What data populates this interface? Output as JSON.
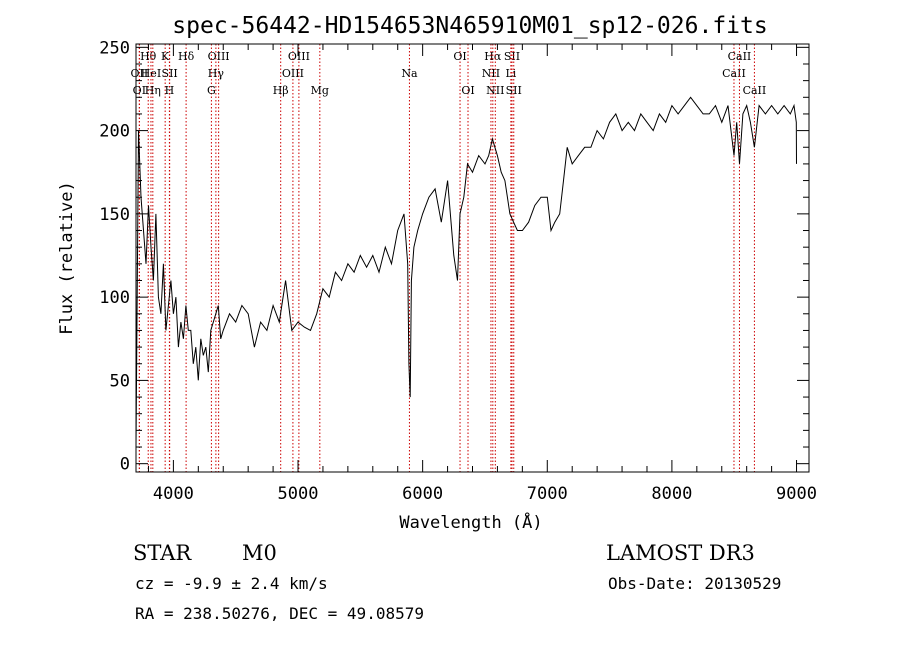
{
  "chart_data": {
    "type": "line",
    "title": "spec-56442-HD154653N465910M01_sp12-026.fits",
    "xlabel": "Wavelength (Å)",
    "ylabel": "Flux (relative)",
    "xlim": [
      3700,
      9100
    ],
    "ylim": [
      -5,
      252
    ],
    "xticks": [
      4000,
      5000,
      6000,
      7000,
      8000,
      9000
    ],
    "yticks": [
      0,
      50,
      100,
      150,
      200,
      250
    ],
    "grid": false,
    "series": [
      {
        "x": [
          3700,
          3720,
          3740,
          3760,
          3780,
          3800,
          3820,
          3840,
          3860,
          3880,
          3900,
          3920,
          3940,
          3960,
          3980,
          4000,
          4020,
          4040,
          4060,
          4080,
          4100,
          4120,
          4140,
          4160,
          4180,
          4200,
          4220,
          4240,
          4260,
          4280,
          4300,
          4320,
          4340,
          4360,
          4380,
          4400,
          4450,
          4500,
          4550,
          4600,
          4650,
          4700,
          4750,
          4800,
          4850,
          4900,
          4950,
          5000,
          5050,
          5100,
          5150,
          5200,
          5250,
          5300,
          5350,
          5400,
          5450,
          5500,
          5550,
          5600,
          5650,
          5700,
          5750,
          5800,
          5850,
          5880,
          5890,
          5900,
          5910,
          5930,
          5960,
          6000,
          6050,
          6100,
          6150,
          6200,
          6250,
          6280,
          6300,
          6330,
          6360,
          6400,
          6450,
          6500,
          6530,
          6560,
          6580,
          6600,
          6630,
          6660,
          6700,
          6730,
          6760,
          6800,
          6850,
          6900,
          6950,
          7000,
          7030,
          7060,
          7100,
          7130,
          7160,
          7200,
          7250,
          7300,
          7350,
          7400,
          7450,
          7500,
          7550,
          7600,
          7650,
          7700,
          7750,
          7800,
          7850,
          7900,
          7950,
          8000,
          8050,
          8100,
          8150,
          8200,
          8250,
          8300,
          8350,
          8400,
          8450,
          8498,
          8520,
          8542,
          8570,
          8600,
          8630,
          8662,
          8700,
          8750,
          8800,
          8850,
          8900,
          8950,
          8980,
          8998,
          9000
        ],
        "values": [
          10,
          200,
          160,
          140,
          120,
          155,
          130,
          110,
          150,
          100,
          90,
          120,
          80,
          95,
          110,
          90,
          100,
          70,
          85,
          75,
          95,
          80,
          80,
          60,
          70,
          50,
          75,
          65,
          70,
          55,
          80,
          85,
          90,
          95,
          75,
          80,
          90,
          85,
          95,
          90,
          70,
          85,
          80,
          95,
          85,
          110,
          80,
          85,
          82,
          80,
          90,
          105,
          100,
          115,
          110,
          120,
          115,
          125,
          118,
          125,
          115,
          130,
          120,
          140,
          150,
          120,
          60,
          40,
          110,
          130,
          140,
          150,
          160,
          165,
          145,
          170,
          125,
          110,
          150,
          160,
          180,
          175,
          185,
          180,
          185,
          195,
          190,
          185,
          175,
          170,
          150,
          145,
          140,
          140,
          145,
          155,
          160,
          160,
          140,
          145,
          150,
          170,
          190,
          180,
          185,
          190,
          190,
          200,
          195,
          205,
          210,
          200,
          205,
          200,
          210,
          205,
          200,
          210,
          205,
          215,
          210,
          215,
          220,
          215,
          210,
          210,
          215,
          205,
          215,
          185,
          205,
          180,
          210,
          215,
          205,
          190,
          215,
          210,
          215,
          210,
          215,
          210,
          215,
          205,
          180
        ]
      }
    ],
    "line_ids": [
      {
        "label": "OII",
        "x": 3727,
        "row": 2
      },
      {
        "label": "OI",
        "x": 3727,
        "row": 3
      },
      {
        "label": "Hθ",
        "x": 3798,
        "row": 1
      },
      {
        "label": "HeI",
        "x": 3820,
        "row": 2
      },
      {
        "label": "Hη",
        "x": 3835,
        "row": 3
      },
      {
        "label": "K",
        "x": 3934,
        "row": 1
      },
      {
        "label": "SII",
        "x": 3970,
        "row": 2
      },
      {
        "label": "H",
        "x": 3968,
        "row": 3
      },
      {
        "label": "Hδ",
        "x": 4102,
        "row": 1
      },
      {
        "label": "OIII",
        "x": 4363,
        "row": 1
      },
      {
        "label": "Hγ",
        "x": 4341,
        "row": 2
      },
      {
        "label": "G",
        "x": 4305,
        "row": 3
      },
      {
        "label": "Hβ",
        "x": 4861,
        "row": 3
      },
      {
        "label": "OIII",
        "x": 4959,
        "row": 2
      },
      {
        "label": "OIII",
        "x": 5007,
        "row": 1
      },
      {
        "label": "Mg",
        "x": 5175,
        "row": 3
      },
      {
        "label": "Na",
        "x": 5894,
        "row": 2
      },
      {
        "label": "OI",
        "x": 6300,
        "row": 1
      },
      {
        "label": "OI",
        "x": 6364,
        "row": 3
      },
      {
        "label": "Hα",
        "x": 6563,
        "row": 1
      },
      {
        "label": "NII",
        "x": 6548,
        "row": 2
      },
      {
        "label": "NII",
        "x": 6583,
        "row": 3
      },
      {
        "label": "SII",
        "x": 6717,
        "row": 1
      },
      {
        "label": "Li",
        "x": 6708,
        "row": 2
      },
      {
        "label": "SII",
        "x": 6731,
        "row": 3
      },
      {
        "label": "CaII",
        "x": 8498,
        "row": 2
      },
      {
        "label": "CaII",
        "x": 8542,
        "row": 1
      },
      {
        "label": "CaII",
        "x": 8662,
        "row": 3
      }
    ],
    "line_color": "#cc0000"
  },
  "info": {
    "obj_class": "STAR",
    "subclass": "M0",
    "survey": "LAMOST DR3",
    "cz": "cz = -9.9 ± 2.4 km/s",
    "obs_date": "Obs-Date: 20130529",
    "coords": "RA = 238.50276, DEC =  49.08579"
  }
}
